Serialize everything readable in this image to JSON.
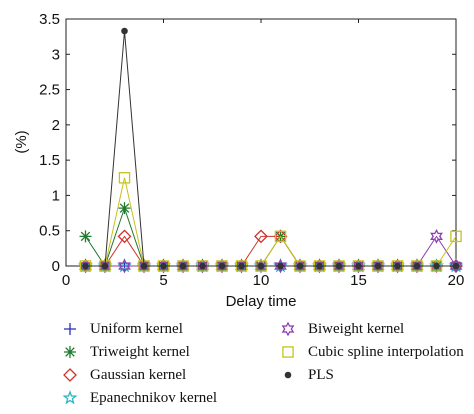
{
  "chart_data": {
    "type": "line",
    "title": "",
    "xlabel": "Delay time",
    "ylabel": "(%)",
    "xlim": [
      0,
      20
    ],
    "ylim": [
      0,
      3.5
    ],
    "xticks": [
      "0",
      "5",
      "10",
      "15",
      "20"
    ],
    "yticks": [
      "0",
      "0.5",
      "1",
      "1.5",
      "2",
      "2.5",
      "3",
      "3.5"
    ],
    "grid": false,
    "legend_position": "bottom",
    "x": [
      1,
      2,
      3,
      4,
      5,
      6,
      7,
      8,
      9,
      10,
      11,
      12,
      13,
      14,
      15,
      16,
      17,
      18,
      19,
      20
    ],
    "series": [
      {
        "name": "Uniform kernel",
        "marker": "plus",
        "color": "#2b2bb8",
        "values": [
          0,
          0,
          0,
          0,
          0,
          0,
          0,
          0,
          0,
          0,
          0,
          0,
          0,
          0,
          0,
          0,
          0,
          0,
          0,
          0
        ]
      },
      {
        "name": "Triweight kernel",
        "marker": "asterisk",
        "color": "#1f7a2e",
        "values": [
          0.42,
          0,
          0.82,
          0,
          0,
          0,
          0,
          0,
          0,
          0,
          0.42,
          0,
          0,
          0,
          0,
          0,
          0,
          0,
          0,
          0
        ]
      },
      {
        "name": "Gaussian kernel",
        "marker": "diamond",
        "color": "#d0312d",
        "values": [
          0,
          0,
          0.42,
          0,
          0,
          0,
          0,
          0,
          0,
          0.42,
          0.42,
          0,
          0,
          0,
          0,
          0,
          0,
          0,
          0,
          0
        ]
      },
      {
        "name": "Epanechnikov kernel",
        "marker": "star5",
        "color": "#2bb5c0",
        "values": [
          0,
          0,
          0,
          0,
          0,
          0,
          0,
          0,
          0,
          0,
          0,
          0,
          0,
          0,
          0,
          0,
          0,
          0,
          0,
          0
        ]
      },
      {
        "name": "Biweight kernel",
        "marker": "star6",
        "color": "#8e3fb0",
        "values": [
          0,
          0,
          0,
          0,
          0,
          0,
          0,
          0,
          0,
          0,
          0,
          0,
          0,
          0,
          0,
          0,
          0,
          0,
          0.42,
          0
        ]
      },
      {
        "name": "Cubic spline interpolation",
        "marker": "square",
        "color": "#c8c21a",
        "values": [
          0,
          0,
          1.25,
          0,
          0,
          0,
          0,
          0,
          0,
          0,
          0.42,
          0,
          0,
          0,
          0,
          0,
          0,
          0,
          0,
          0.42
        ]
      },
      {
        "name": "PLS",
        "marker": "dot",
        "color": "#333333",
        "values": [
          0,
          0,
          3.33,
          0,
          0,
          0,
          0,
          0,
          0,
          0,
          0,
          0,
          0,
          0,
          0,
          0,
          0,
          0,
          0,
          0
        ]
      }
    ]
  }
}
